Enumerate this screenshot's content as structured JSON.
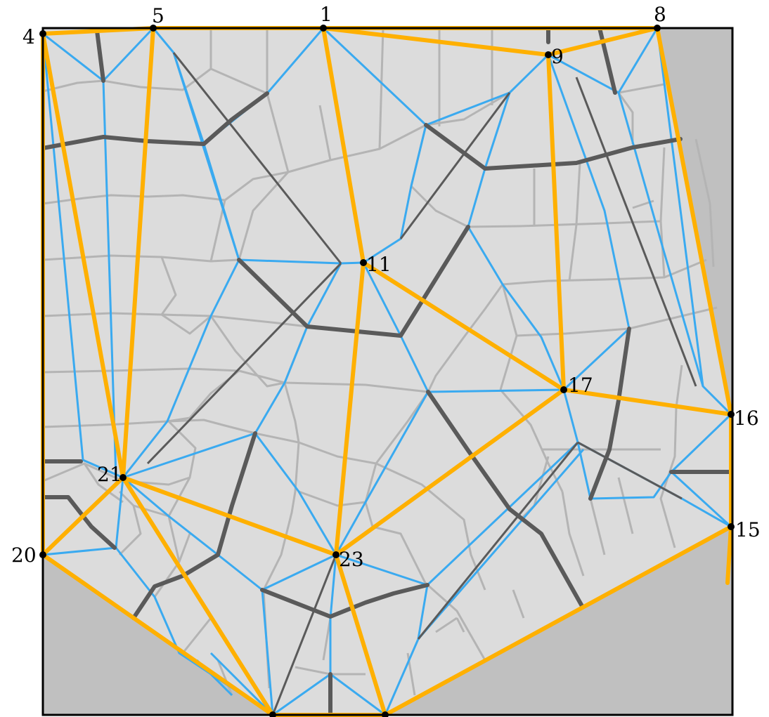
{
  "diagram": {
    "type": "crease-pattern",
    "colors": {
      "background": "#ffffff",
      "outside": "#c0c0c0",
      "paper": "#dcdcdc",
      "border": "#000000",
      "orange": "#ffb000",
      "blue": "#3aaaf0",
      "grey": "#b4b4b4",
      "dark": "#5a5a5a",
      "vertex": "#000000"
    },
    "vertex_labels": [
      "1",
      "4",
      "5",
      "8",
      "9",
      "11",
      "15",
      "16",
      "17",
      "20",
      "21",
      "23"
    ]
  }
}
